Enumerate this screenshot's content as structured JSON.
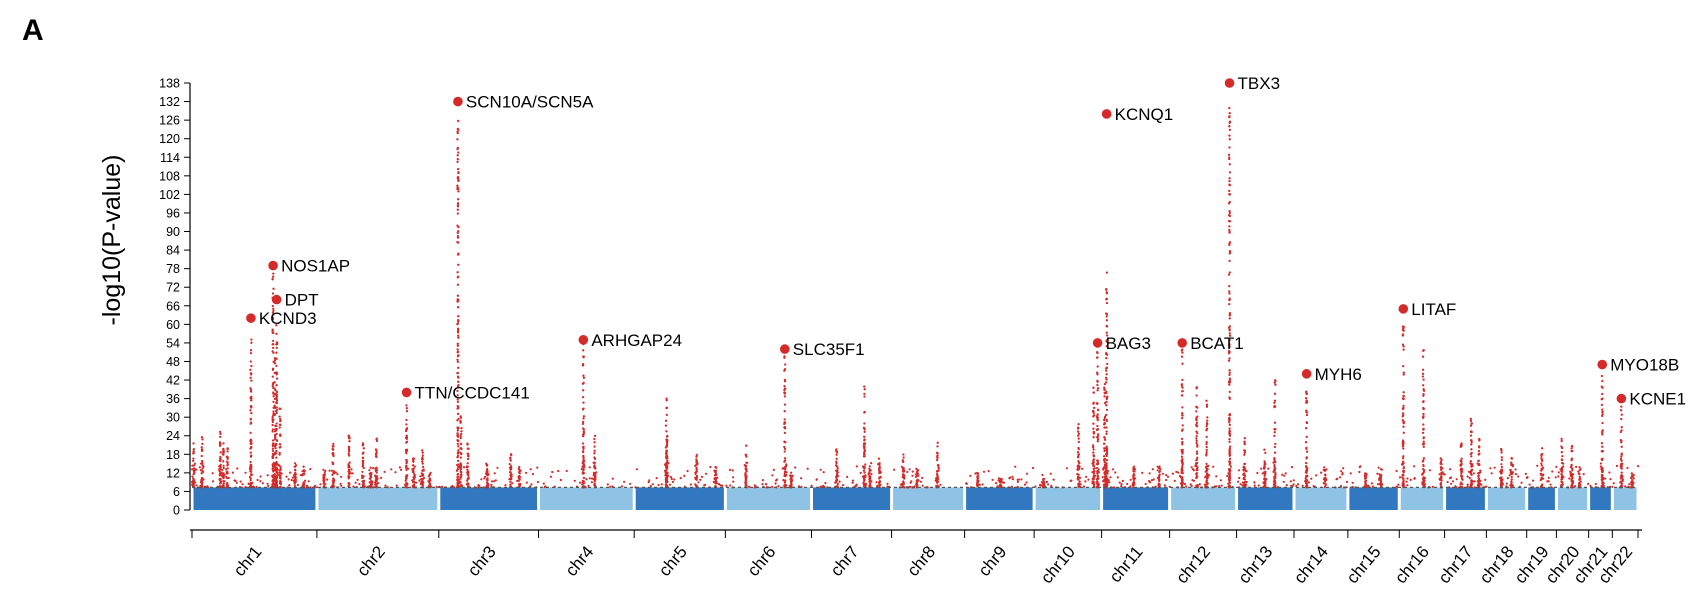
{
  "panel_label": "A",
  "chart_data": {
    "type": "scatter",
    "subtype": "manhattan",
    "title": "",
    "xlabel": "",
    "ylabel": "-log10(P-value)",
    "ylim": [
      0,
      138
    ],
    "yticks": [
      0,
      6,
      12,
      18,
      24,
      30,
      36,
      42,
      48,
      54,
      60,
      66,
      72,
      78,
      84,
      90,
      96,
      102,
      108,
      114,
      120,
      126,
      132,
      138
    ],
    "threshold": 7.3,
    "grid": false,
    "legend": "none",
    "colors": {
      "significant": "#d42a2a",
      "band_dark": "#3178c0",
      "band_light": "#8ec3e6",
      "threshold_line": "#555555",
      "axis": "#000000"
    },
    "chromosomes": [
      {
        "name": "chr1",
        "start": 0,
        "end": 248
      },
      {
        "name": "chr2",
        "start": 248,
        "end": 490
      },
      {
        "name": "chr3",
        "start": 490,
        "end": 688
      },
      {
        "name": "chr4",
        "start": 688,
        "end": 878
      },
      {
        "name": "chr5",
        "start": 878,
        "end": 1059
      },
      {
        "name": "chr6",
        "start": 1059,
        "end": 1230
      },
      {
        "name": "chr7",
        "start": 1230,
        "end": 1389
      },
      {
        "name": "chr8",
        "start": 1389,
        "end": 1534
      },
      {
        "name": "chr9",
        "start": 1534,
        "end": 1672
      },
      {
        "name": "chr10",
        "start": 1672,
        "end": 1806
      },
      {
        "name": "chr11",
        "start": 1806,
        "end": 1941
      },
      {
        "name": "chr12",
        "start": 1941,
        "end": 2074
      },
      {
        "name": "chr13",
        "start": 2074,
        "end": 2188
      },
      {
        "name": "chr14",
        "start": 2188,
        "end": 2295
      },
      {
        "name": "chr15",
        "start": 2295,
        "end": 2397
      },
      {
        "name": "chr16",
        "start": 2397,
        "end": 2487
      },
      {
        "name": "chr17",
        "start": 2487,
        "end": 2570
      },
      {
        "name": "chr18",
        "start": 2570,
        "end": 2650
      },
      {
        "name": "chr19",
        "start": 2650,
        "end": 2709
      },
      {
        "name": "chr20",
        "start": 2709,
        "end": 2773
      },
      {
        "name": "chr21",
        "start": 2773,
        "end": 2820
      },
      {
        "name": "chr22",
        "start": 2820,
        "end": 2871
      }
    ],
    "lead_snps": [
      {
        "gene": "KCND3",
        "x": 117,
        "y": 62
      },
      {
        "gene": "NOS1AP",
        "x": 161,
        "y": 79
      },
      {
        "gene": "DPT",
        "x": 168,
        "y": 68
      },
      {
        "gene": "TTN/CCDC141",
        "x": 426,
        "y": 38
      },
      {
        "gene": "SCN10A/SCN5A",
        "x": 528,
        "y": 132
      },
      {
        "gene": "ARHGAP24",
        "x": 777,
        "y": 55
      },
      {
        "gene": "SLC35F1",
        "x": 1177,
        "y": 52
      },
      {
        "gene": "BAG3",
        "x": 1798,
        "y": 54
      },
      {
        "gene": "KCNQ1",
        "x": 1816,
        "y": 128
      },
      {
        "gene": "BCAT1",
        "x": 1966,
        "y": 54
      },
      {
        "gene": "TBX3",
        "x": 2060,
        "y": 138
      },
      {
        "gene": "MYH6",
        "x": 2213,
        "y": 44
      },
      {
        "gene": "LITAF",
        "x": 2405,
        "y": 65
      },
      {
        "gene": "MYO18B",
        "x": 2800,
        "y": 47
      },
      {
        "gene": "KCNE1",
        "x": 2838,
        "y": 36
      }
    ],
    "peaks": [
      {
        "x": 3,
        "y": 27
      },
      {
        "x": 20,
        "y": 24
      },
      {
        "x": 56,
        "y": 27
      },
      {
        "x": 62,
        "y": 22
      },
      {
        "x": 70,
        "y": 20
      },
      {
        "x": 117,
        "y": 56
      },
      {
        "x": 161,
        "y": 78
      },
      {
        "x": 165,
        "y": 50
      },
      {
        "x": 168,
        "y": 60
      },
      {
        "x": 175,
        "y": 33
      },
      {
        "x": 205,
        "y": 16
      },
      {
        "x": 222,
        "y": 14
      },
      {
        "x": 262,
        "y": 13
      },
      {
        "x": 280,
        "y": 22
      },
      {
        "x": 312,
        "y": 25
      },
      {
        "x": 340,
        "y": 22
      },
      {
        "x": 355,
        "y": 14
      },
      {
        "x": 366,
        "y": 24
      },
      {
        "x": 426,
        "y": 36
      },
      {
        "x": 440,
        "y": 18
      },
      {
        "x": 458,
        "y": 20
      },
      {
        "x": 472,
        "y": 12
      },
      {
        "x": 528,
        "y": 126
      },
      {
        "x": 534,
        "y": 32
      },
      {
        "x": 548,
        "y": 22
      },
      {
        "x": 586,
        "y": 18
      },
      {
        "x": 633,
        "y": 18
      },
      {
        "x": 650,
        "y": 14
      },
      {
        "x": 777,
        "y": 54
      },
      {
        "x": 800,
        "y": 24
      },
      {
        "x": 942,
        "y": 40
      },
      {
        "x": 943,
        "y": 26
      },
      {
        "x": 1002,
        "y": 18
      },
      {
        "x": 1040,
        "y": 14
      },
      {
        "x": 1100,
        "y": 22
      },
      {
        "x": 1177,
        "y": 50
      },
      {
        "x": 1190,
        "y": 12
      },
      {
        "x": 1280,
        "y": 20
      },
      {
        "x": 1335,
        "y": 42
      },
      {
        "x": 1346,
        "y": 16
      },
      {
        "x": 1365,
        "y": 20
      },
      {
        "x": 1412,
        "y": 18
      },
      {
        "x": 1440,
        "y": 14
      },
      {
        "x": 1480,
        "y": 22
      },
      {
        "x": 1560,
        "y": 12
      },
      {
        "x": 1605,
        "y": 10
      },
      {
        "x": 1690,
        "y": 10
      },
      {
        "x": 1760,
        "y": 28
      },
      {
        "x": 1790,
        "y": 40
      },
      {
        "x": 1798,
        "y": 52
      },
      {
        "x": 1812,
        "y": 44
      },
      {
        "x": 1816,
        "y": 78
      },
      {
        "x": 1870,
        "y": 14
      },
      {
        "x": 1920,
        "y": 14
      },
      {
        "x": 1966,
        "y": 52
      },
      {
        "x": 1995,
        "y": 40
      },
      {
        "x": 2015,
        "y": 36
      },
      {
        "x": 2060,
        "y": 136
      },
      {
        "x": 2090,
        "y": 24
      },
      {
        "x": 2130,
        "y": 22
      },
      {
        "x": 2150,
        "y": 42
      },
      {
        "x": 2213,
        "y": 40
      },
      {
        "x": 2250,
        "y": 14
      },
      {
        "x": 2330,
        "y": 12
      },
      {
        "x": 2360,
        "y": 14
      },
      {
        "x": 2405,
        "y": 60
      },
      {
        "x": 2445,
        "y": 52
      },
      {
        "x": 2480,
        "y": 18
      },
      {
        "x": 2520,
        "y": 22
      },
      {
        "x": 2540,
        "y": 30
      },
      {
        "x": 2555,
        "y": 26
      },
      {
        "x": 2600,
        "y": 20
      },
      {
        "x": 2620,
        "y": 18
      },
      {
        "x": 2680,
        "y": 20
      },
      {
        "x": 2720,
        "y": 24
      },
      {
        "x": 2740,
        "y": 22
      },
      {
        "x": 2755,
        "y": 14
      },
      {
        "x": 2800,
        "y": 44
      },
      {
        "x": 2838,
        "y": 34
      },
      {
        "x": 2860,
        "y": 12
      }
    ]
  }
}
